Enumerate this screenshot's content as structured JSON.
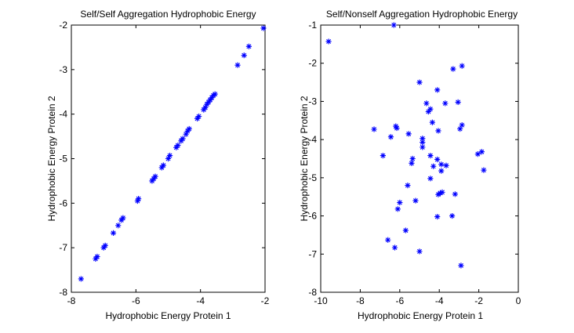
{
  "marker_color": "#0000ff",
  "chart_data": [
    {
      "type": "scatter",
      "title": "Self/Self Aggregation Hydrophobic Energy",
      "xlabel": "Hydrophobic Energy Protein 1",
      "ylabel": "Hydrophobic Energy Protein 2",
      "xlim": [
        -8,
        -2
      ],
      "ylim": [
        -8,
        -2
      ],
      "xticks": [
        -8,
        -6,
        -4,
        -2
      ],
      "yticks": [
        -8,
        -7,
        -6,
        -5,
        -4,
        -3,
        -2
      ],
      "grid": false,
      "marker": "asterisk",
      "points": [
        [
          -7.7,
          -7.7
        ],
        [
          -7.25,
          -7.25
        ],
        [
          -7.2,
          -7.2
        ],
        [
          -7.0,
          -7.0
        ],
        [
          -6.95,
          -6.95
        ],
        [
          -6.7,
          -6.67
        ],
        [
          -6.55,
          -6.5
        ],
        [
          -6.45,
          -6.38
        ],
        [
          -6.4,
          -6.33
        ],
        [
          -5.95,
          -5.95
        ],
        [
          -5.92,
          -5.9
        ],
        [
          -5.5,
          -5.5
        ],
        [
          -5.45,
          -5.45
        ],
        [
          -5.4,
          -5.4
        ],
        [
          -5.2,
          -5.2
        ],
        [
          -5.15,
          -5.15
        ],
        [
          -5.0,
          -5.0
        ],
        [
          -4.95,
          -4.93
        ],
        [
          -4.75,
          -4.75
        ],
        [
          -4.7,
          -4.7
        ],
        [
          -4.6,
          -4.6
        ],
        [
          -4.55,
          -4.55
        ],
        [
          -4.45,
          -4.45
        ],
        [
          -4.4,
          -4.38
        ],
        [
          -4.35,
          -4.33
        ],
        [
          -4.1,
          -4.1
        ],
        [
          -4.05,
          -4.05
        ],
        [
          -3.9,
          -3.9
        ],
        [
          -3.85,
          -3.85
        ],
        [
          -3.8,
          -3.78
        ],
        [
          -3.75,
          -3.73
        ],
        [
          -3.7,
          -3.68
        ],
        [
          -3.65,
          -3.63
        ],
        [
          -3.6,
          -3.58
        ],
        [
          -3.55,
          -3.55
        ],
        [
          -2.85,
          -2.9
        ],
        [
          -2.65,
          -2.68
        ],
        [
          -2.5,
          -2.48
        ],
        [
          -2.05,
          -2.07
        ]
      ]
    },
    {
      "type": "scatter",
      "title": "Self/Nonself Aggregation Hydrophobic Energy",
      "xlabel": "Hydrophobic Energy Protein 1",
      "ylabel": "Hydrophobic Energy Protein 2",
      "xlim": [
        -10,
        0
      ],
      "ylim": [
        -8,
        -1
      ],
      "xticks": [
        -10,
        -8,
        -6,
        -4,
        -2,
        0
      ],
      "yticks": [
        -8,
        -7,
        -6,
        -5,
        -4,
        -3,
        -2,
        -1
      ],
      "grid": false,
      "marker": "asterisk",
      "points": [
        [
          -9.6,
          -1.43
        ],
        [
          -6.3,
          -1.0
        ],
        [
          -5.0,
          -2.5
        ],
        [
          -4.1,
          -2.7
        ],
        [
          -3.3,
          -2.15
        ],
        [
          -2.85,
          -2.07
        ],
        [
          -4.65,
          -3.05
        ],
        [
          -4.45,
          -3.2
        ],
        [
          -4.55,
          -3.27
        ],
        [
          -4.35,
          -3.55
        ],
        [
          -3.7,
          -3.05
        ],
        [
          -3.05,
          -3.02
        ],
        [
          -6.2,
          -3.65
        ],
        [
          -6.15,
          -3.7
        ],
        [
          -7.3,
          -3.73
        ],
        [
          -5.55,
          -3.85
        ],
        [
          -4.05,
          -3.77
        ],
        [
          -2.95,
          -3.72
        ],
        [
          -2.85,
          -3.62
        ],
        [
          -6.45,
          -3.93
        ],
        [
          -4.85,
          -3.97
        ],
        [
          -4.85,
          -4.07
        ],
        [
          -4.85,
          -4.2
        ],
        [
          -6.85,
          -4.42
        ],
        [
          -5.35,
          -4.5
        ],
        [
          -5.4,
          -4.62
        ],
        [
          -4.45,
          -4.42
        ],
        [
          -4.1,
          -4.52
        ],
        [
          -3.9,
          -4.65
        ],
        [
          -3.65,
          -4.68
        ],
        [
          -4.3,
          -4.7
        ],
        [
          -3.9,
          -4.82
        ],
        [
          -2.05,
          -4.38
        ],
        [
          -1.85,
          -4.32
        ],
        [
          -1.75,
          -4.8
        ],
        [
          -4.45,
          -5.02
        ],
        [
          -5.6,
          -5.2
        ],
        [
          -3.95,
          -5.4
        ],
        [
          -3.85,
          -5.38
        ],
        [
          -4.05,
          -5.44
        ],
        [
          -3.2,
          -5.43
        ],
        [
          -5.2,
          -5.6
        ],
        [
          -6.0,
          -5.65
        ],
        [
          -6.1,
          -5.82
        ],
        [
          -4.1,
          -6.02
        ],
        [
          -3.35,
          -6.0
        ],
        [
          -5.7,
          -6.38
        ],
        [
          -6.6,
          -6.63
        ],
        [
          -6.25,
          -6.83
        ],
        [
          -5.0,
          -6.93
        ],
        [
          -2.9,
          -7.3
        ]
      ]
    }
  ]
}
